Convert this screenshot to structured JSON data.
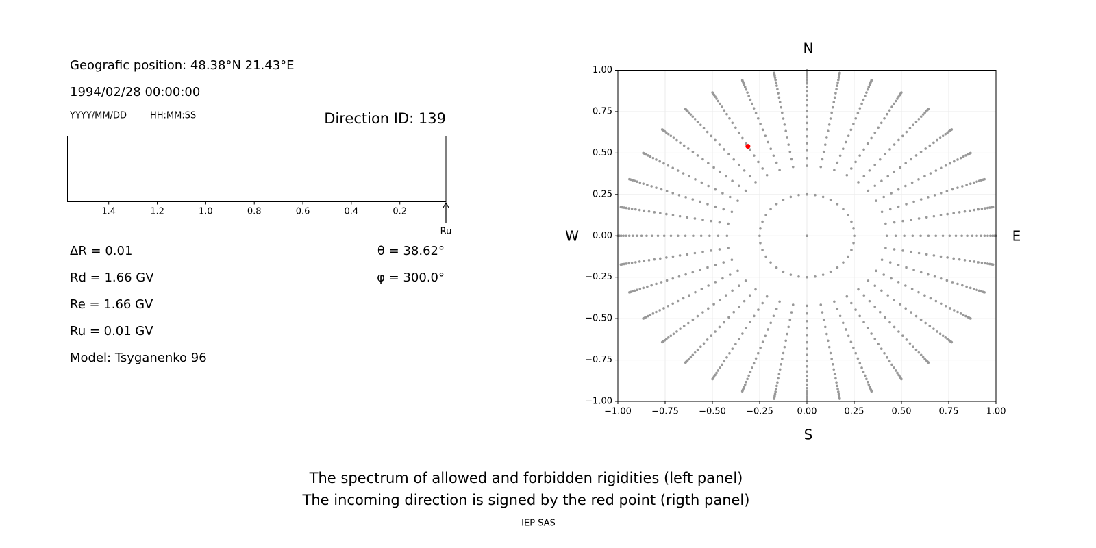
{
  "left_panel": {
    "position": "Geografic position: 48.38°N 21.43°E",
    "datetime": "1994/02/28 00:00:00",
    "date_format": "YYYY/MM/DD",
    "time_format": "HH:MM:SS",
    "direction_id": "Direction ID: 139",
    "spectrum": {
      "xlim": [
        1.57,
        0.01
      ],
      "xticks": [
        1.4,
        1.2,
        {
          "value": 1,
          "label": "1.0"
        },
        0.8,
        0.6,
        0.4,
        0.2
      ],
      "marker": {
        "label": "Ru",
        "value": 0.01
      }
    },
    "delta_r": "ΔR = 0.01",
    "theta": {
      "label": "θ = 38.62°",
      "value": 38.62
    },
    "phi": {
      "label": "φ = 300.0°",
      "value": 300
    },
    "rd": "Rd = 1.66 GV",
    "re": "Re = 1.66 GV",
    "ru": "Ru = 0.01 GV",
    "model": "Model: Tsyganenko 96"
  },
  "chart_data": {
    "type": "scatter",
    "xlim": [
      -1,
      1
    ],
    "ylim": [
      -1,
      1
    ],
    "xticks": [
      {
        "value": -1,
        "label": "−1.00"
      },
      {
        "value": -0.75,
        "label": "−0.75"
      },
      {
        "value": -0.5,
        "label": "−0.50"
      },
      {
        "value": -0.25,
        "label": "−0.25"
      },
      {
        "value": 0,
        "label": "0.00"
      },
      {
        "value": 0.25,
        "label": "0.25"
      },
      {
        "value": 0.5,
        "label": "0.50"
      },
      {
        "value": 0.75,
        "label": "0.75"
      },
      {
        "value": 1,
        "label": "1.00"
      }
    ],
    "yticks": [
      {
        "value": -1,
        "label": "−1.00"
      },
      {
        "value": -0.75,
        "label": "−0.75"
      },
      {
        "value": -0.5,
        "label": "−0.50"
      },
      {
        "value": -0.25,
        "label": "−0.25"
      },
      {
        "value": 0,
        "label": "0.00"
      },
      {
        "value": 0.25,
        "label": "0.25"
      },
      {
        "value": 0.5,
        "label": "0.50"
      },
      {
        "value": 0.75,
        "label": "0.75"
      },
      {
        "value": 1,
        "label": "1.00"
      }
    ],
    "grid": true,
    "compass": {
      "north": "N",
      "south": "S",
      "west": "W",
      "east": "E"
    },
    "directions": {
      "color": "#999999",
      "theta": [
        0,
        14.5,
        25,
        28,
        31,
        34,
        37,
        40,
        43,
        46,
        49,
        52,
        55,
        58,
        61,
        64,
        67,
        70,
        73,
        76,
        79,
        82,
        85,
        88
      ],
      "phi": [
        0,
        10,
        20,
        30,
        40,
        50,
        60,
        70,
        80,
        90,
        100,
        110,
        120,
        130,
        140,
        150,
        160,
        170,
        180,
        190,
        200,
        210,
        220,
        230,
        240,
        250,
        260,
        270,
        280,
        290,
        300,
        310,
        320,
        330,
        340,
        350
      ]
    },
    "selected_color": "#ff0000"
  },
  "caption": {
    "lines": [
      "The spectrum of allowed and forbidden rigidities (left panel)",
      "The incoming direction is signed by the red point (rigth panel)"
    ],
    "credit": "IEP SAS"
  }
}
